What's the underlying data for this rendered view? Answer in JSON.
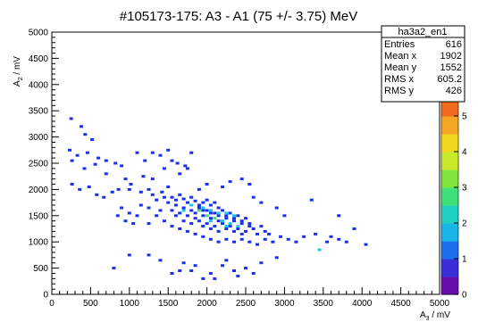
{
  "chart_data": {
    "type": "heatmap",
    "title": "#105173-175: A3 - A1 (75 +/- 3.75) MeV",
    "xlabel": "A3 / mV",
    "ylabel": "A2 / mV",
    "xlim": [
      0,
      5000
    ],
    "ylim": [
      0,
      5000
    ],
    "zlim": [
      0,
      5.5
    ],
    "x_ticks": [
      "0",
      "500",
      "1000",
      "1500",
      "2000",
      "2500",
      "3000",
      "3500",
      "4000",
      "4500",
      "5000"
    ],
    "y_ticks": [
      "0",
      "500",
      "1000",
      "1500",
      "2000",
      "2500",
      "3000",
      "3500",
      "4000",
      "4500",
      "5000"
    ],
    "z_ticks": [
      "0",
      "1",
      "2",
      "3",
      "4",
      "5"
    ],
    "grid": false,
    "stats": {
      "name": "ha3a2_en1",
      "rows": [
        {
          "label": "Entries",
          "value": "616"
        },
        {
          "label": "Mean x",
          "value": "1902"
        },
        {
          "label": "Mean y",
          "value": "1552"
        },
        {
          "label": "RMS x",
          "value": "605.2"
        },
        {
          "label": "RMS y",
          "value": "426"
        }
      ]
    },
    "palette": [
      "#6a0dad",
      "#3a2fd6",
      "#1e6ef0",
      "#19b4e8",
      "#20d0c0",
      "#3ee07a",
      "#7ee53c",
      "#c8ea2a",
      "#f0d81e",
      "#f5a623",
      "#f06a1e"
    ],
    "points": [
      [
        250,
        3350
      ],
      [
        380,
        3200
      ],
      [
        430,
        3050
      ],
      [
        520,
        2950
      ],
      [
        230,
        2750
      ],
      [
        330,
        2650
      ],
      [
        460,
        2700
      ],
      [
        600,
        2600
      ],
      [
        700,
        2550
      ],
      [
        260,
        2550
      ],
      [
        820,
        2500
      ],
      [
        560,
        2480
      ],
      [
        900,
        2450
      ],
      [
        420,
        2400
      ],
      [
        1100,
        2700
      ],
      [
        1300,
        2700
      ],
      [
        1400,
        2650
      ],
      [
        1500,
        2750
      ],
      [
        1550,
        2550
      ],
      [
        1620,
        2500
      ],
      [
        1720,
        2450
      ],
      [
        1800,
        2700
      ],
      [
        1750,
        2400
      ],
      [
        1200,
        2550
      ],
      [
        1650,
        2300
      ],
      [
        1450,
        2400
      ],
      [
        950,
        2200
      ],
      [
        700,
        2300
      ],
      [
        1020,
        2100
      ],
      [
        1180,
        2250
      ],
      [
        1300,
        2200
      ],
      [
        260,
        2100
      ],
      [
        360,
        2000
      ],
      [
        480,
        2050
      ],
      [
        580,
        1900
      ],
      [
        670,
        1850
      ],
      [
        780,
        1950
      ],
      [
        860,
        2000
      ],
      [
        1000,
        2000
      ],
      [
        1150,
        1950
      ],
      [
        1300,
        1900
      ],
      [
        1250,
        2000
      ],
      [
        1420,
        1950
      ],
      [
        1500,
        2050
      ],
      [
        1350,
        1800
      ],
      [
        1450,
        1850
      ],
      [
        1500,
        1750
      ],
      [
        1550,
        1850
      ],
      [
        1600,
        1800
      ],
      [
        1650,
        1900
      ],
      [
        1700,
        1820
      ],
      [
        1750,
        1750
      ],
      [
        1800,
        1850
      ],
      [
        1850,
        1780
      ],
      [
        1900,
        1700
      ],
      [
        1950,
        1750
      ],
      [
        2000,
        1800
      ],
      [
        2050,
        1700
      ],
      [
        2100,
        1750
      ],
      [
        2150,
        1650
      ],
      [
        1600,
        1700
      ],
      [
        1700,
        1650
      ],
      [
        1800,
        1600
      ],
      [
        1900,
        1650
      ],
      [
        2000,
        1600
      ],
      [
        2100,
        1550
      ],
      [
        2200,
        1600
      ],
      [
        2300,
        1550
      ],
      [
        2400,
        1500
      ],
      [
        2500,
        1450
      ],
      [
        1650,
        1550
      ],
      [
        1750,
        1500
      ],
      [
        1850,
        1450
      ],
      [
        1950,
        1500
      ],
      [
        2050,
        1450
      ],
      [
        2150,
        1400
      ],
      [
        2250,
        1450
      ],
      [
        2350,
        1400
      ],
      [
        2450,
        1350
      ],
      [
        2550,
        1300
      ],
      [
        1550,
        1600
      ],
      [
        1600,
        1500
      ],
      [
        1700,
        1400
      ],
      [
        1800,
        1350
      ],
      [
        1900,
        1400
      ],
      [
        2000,
        1350
      ],
      [
        2100,
        1300
      ],
      [
        2200,
        1350
      ],
      [
        2300,
        1300
      ],
      [
        2400,
        1250
      ],
      [
        2500,
        1200
      ],
      [
        2600,
        1250
      ],
      [
        2650,
        1150
      ],
      [
        2700,
        1300
      ],
      [
        2750,
        1200
      ],
      [
        2800,
        1150
      ],
      [
        1850,
        1550
      ],
      [
        1950,
        1600
      ],
      [
        2050,
        1550
      ],
      [
        2150,
        1500
      ],
      [
        2250,
        1500
      ],
      [
        2350,
        1450
      ],
      [
        2450,
        1400
      ],
      [
        2550,
        1350
      ],
      [
        2250,
        1250
      ],
      [
        2350,
        1200
      ],
      [
        2450,
        1150
      ],
      [
        2150,
        1200
      ],
      [
        2050,
        1250
      ],
      [
        1950,
        1300
      ],
      [
        1400,
        1600
      ],
      [
        1350,
        1500
      ],
      [
        1250,
        1650
      ],
      [
        1150,
        1700
      ],
      [
        1100,
        1500
      ],
      [
        1000,
        1550
      ],
      [
        900,
        1650
      ],
      [
        850,
        1500
      ],
      [
        950,
        1400
      ],
      [
        1050,
        1350
      ],
      [
        1250,
        1350
      ],
      [
        1450,
        1400
      ],
      [
        1550,
        1300
      ],
      [
        1650,
        1250
      ],
      [
        1750,
        1200
      ],
      [
        1850,
        1150
      ],
      [
        1950,
        1100
      ],
      [
        2050,
        1050
      ],
      [
        2150,
        1000
      ],
      [
        2250,
        1050
      ],
      [
        2350,
        1000
      ],
      [
        2450,
        1050
      ],
      [
        2550,
        1000
      ],
      [
        2650,
        950
      ],
      [
        2750,
        1050
      ],
      [
        2850,
        1000
      ],
      [
        2950,
        1100
      ],
      [
        3050,
        1050
      ],
      [
        3150,
        1000
      ],
      [
        3250,
        1100
      ],
      [
        3400,
        1150
      ],
      [
        3600,
        1100
      ],
      [
        3700,
        1050
      ],
      [
        3800,
        1000
      ],
      [
        4050,
        950
      ],
      [
        3550,
        1000
      ],
      [
        3900,
        1250
      ],
      [
        3700,
        1500
      ],
      [
        3350,
        1800
      ],
      [
        3000,
        1500
      ],
      [
        2900,
        1650
      ],
      [
        2700,
        1750
      ],
      [
        2600,
        1850
      ],
      [
        2550,
        2100
      ],
      [
        2450,
        2200
      ],
      [
        2300,
        2150
      ],
      [
        2200,
        2050
      ],
      [
        2000,
        2100
      ],
      [
        1900,
        2000
      ],
      [
        3450,
        850
      ],
      [
        2900,
        700
      ],
      [
        2700,
        600
      ],
      [
        2500,
        500
      ],
      [
        2350,
        450
      ],
      [
        2200,
        550
      ],
      [
        2050,
        400
      ],
      [
        1950,
        300
      ],
      [
        1850,
        550
      ],
      [
        1700,
        600
      ],
      [
        1550,
        400
      ],
      [
        1400,
        650
      ],
      [
        1250,
        750
      ],
      [
        2100,
        300
      ],
      [
        2400,
        350
      ],
      [
        2600,
        400
      ],
      [
        800,
        500
      ],
      [
        1000,
        750
      ],
      [
        1800,
        450
      ],
      [
        2250,
        650
      ],
      [
        1650,
        450
      ]
    ],
    "hot_points": [
      [
        1950,
        1650,
        2
      ],
      [
        2050,
        1600,
        2
      ],
      [
        2150,
        1550,
        2
      ],
      [
        2250,
        1550,
        2
      ],
      [
        2350,
        1500,
        2
      ],
      [
        2000,
        1500,
        3
      ],
      [
        2100,
        1450,
        3
      ],
      [
        2200,
        1400,
        2
      ],
      [
        2300,
        1350,
        2
      ],
      [
        1900,
        1600,
        3
      ],
      [
        1800,
        1700,
        2
      ],
      [
        2250,
        1300,
        2
      ],
      [
        2400,
        1300,
        2
      ],
      [
        1700,
        1600,
        2
      ],
      [
        2050,
        1400,
        2
      ],
      [
        3450,
        850,
        2
      ]
    ]
  }
}
